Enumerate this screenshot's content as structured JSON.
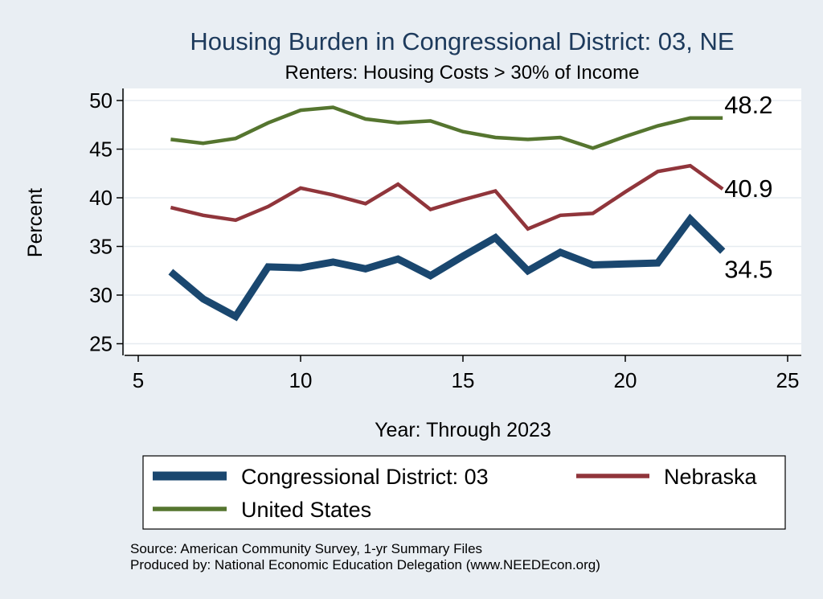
{
  "chart_data": {
    "type": "line",
    "title": "Housing Burden in Congressional District:  03, NE",
    "subtitle": "Renters: Housing Costs > 30% of Income",
    "xlabel": "Year: Through 2023",
    "ylabel": "Percent",
    "xlim": [
      5,
      25
    ],
    "ylim": [
      24.5,
      51
    ],
    "xticks": [
      5,
      10,
      15,
      20,
      25
    ],
    "yticks": [
      25,
      30,
      35,
      40,
      45,
      50
    ],
    "grid": true,
    "legend_position": "bottom",
    "series": [
      {
        "name": "Congressional District:  03",
        "color": "#1a476f",
        "width": "thick",
        "x": [
          6,
          7,
          8,
          9,
          10,
          11,
          12,
          13,
          14,
          15,
          16,
          17,
          18,
          19,
          20,
          21,
          22,
          23
        ],
        "values": [
          32.4,
          29.6,
          27.8,
          32.9,
          32.8,
          33.4,
          32.7,
          33.7,
          32.0,
          34.0,
          35.9,
          32.5,
          34.4,
          33.1,
          33.2,
          33.3,
          37.8,
          34.5
        ],
        "end_label": "34.5"
      },
      {
        "name": "Nebraska",
        "color": "#90353b",
        "width": "medium",
        "x": [
          6,
          7,
          8,
          9,
          10,
          11,
          12,
          13,
          14,
          15,
          16,
          17,
          18,
          19,
          20,
          21,
          22,
          23
        ],
        "values": [
          39.0,
          38.2,
          37.7,
          39.1,
          41.0,
          40.3,
          39.4,
          41.4,
          38.8,
          39.8,
          40.7,
          36.8,
          38.2,
          38.4,
          40.6,
          42.7,
          43.3,
          40.9
        ],
        "end_label": "40.9"
      },
      {
        "name": "United States",
        "color": "#55752f",
        "width": "medium",
        "x": [
          6,
          7,
          8,
          9,
          10,
          11,
          12,
          13,
          14,
          15,
          16,
          17,
          18,
          19,
          20,
          21,
          22,
          23
        ],
        "values": [
          46.0,
          45.6,
          46.1,
          47.7,
          49.0,
          49.3,
          48.1,
          47.7,
          47.9,
          46.8,
          46.2,
          46.0,
          46.2,
          45.1,
          46.3,
          47.4,
          48.2,
          48.2
        ],
        "end_label": "48.2"
      }
    ]
  },
  "notes": {
    "source": "Source: American Community Survey, 1-yr Summary Files",
    "produced_by": "Produced by: National Economic Education Delegation (www.NEEDEcon.org)"
  }
}
